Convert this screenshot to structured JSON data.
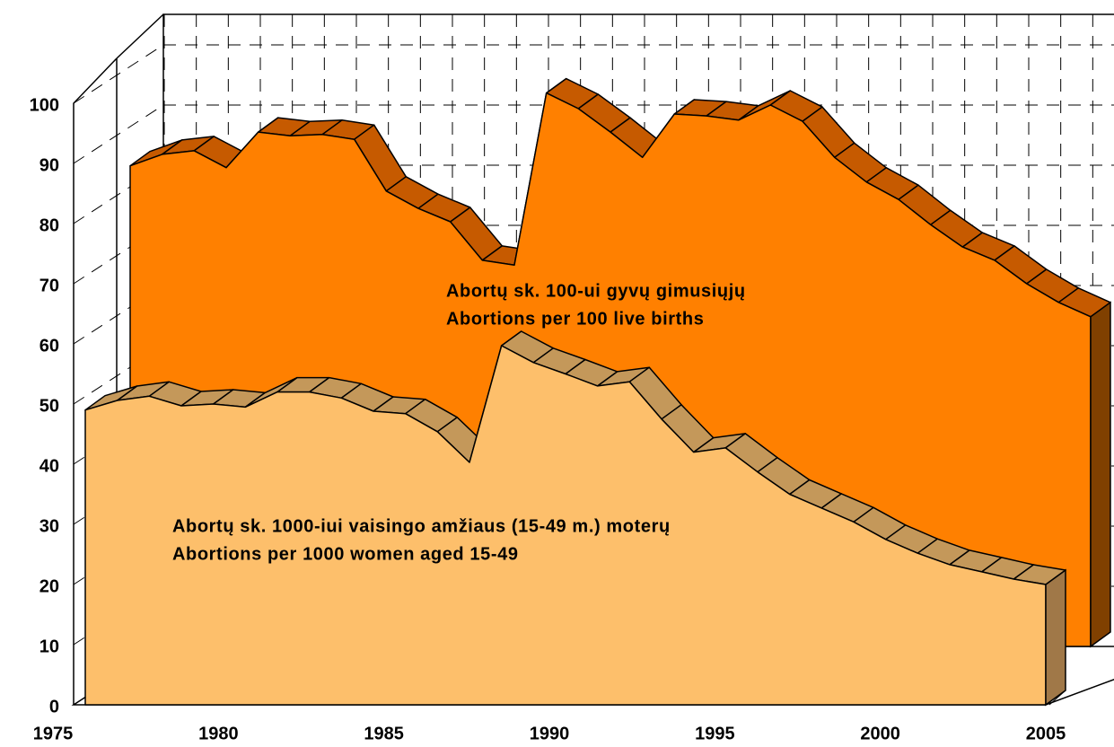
{
  "chart_data": {
    "type": "area3d",
    "x": [
      1975,
      1976,
      1977,
      1978,
      1979,
      1980,
      1981,
      1982,
      1983,
      1984,
      1985,
      1986,
      1987,
      1988,
      1989,
      1990,
      1991,
      1992,
      1993,
      1994,
      1995,
      1996,
      1997,
      1998,
      1999,
      2000,
      2001,
      2002,
      2003,
      2004,
      2005
    ],
    "series": [
      {
        "name": "Abortų sk. 100-ui gyvų gimusiųjų",
        "subtitle": "Abortions per 100 live births",
        "color": "#ff8000",
        "top_color": "#c65a00",
        "side_color": "#804000",
        "values": [
          79.9,
          81.8,
          82.4,
          79.6,
          85.5,
          84.9,
          85.1,
          84.3,
          75.7,
          72.8,
          70.6,
          64.2,
          63.4,
          92,
          89.4,
          85.5,
          81.3,
          88.5,
          88.2,
          87.5,
          90,
          87.3,
          81.3,
          77.2,
          74.3,
          70.1,
          66.4,
          64.2,
          60.3,
          57.2,
          54.8
        ]
      },
      {
        "name": "Abortų sk. 1000-iui vaisingo amžiaus (15-49 m.) moterų",
        "subtitle": "Abortions per 1000 women aged 15-49",
        "color": "#fdbf6b",
        "top_color": "#c4985a",
        "side_color": "#a07848",
        "values": [
          49,
          50.6,
          51.3,
          49.7,
          50,
          49.5,
          52,
          52,
          51,
          48.8,
          48.4,
          45.4,
          40.3,
          59.7,
          56.9,
          55,
          53,
          53.7,
          47.5,
          42,
          42.7,
          38.7,
          35,
          32.7,
          30.4,
          27.5,
          25.2,
          23.3,
          22.1,
          20.9,
          20
        ]
      }
    ],
    "xlim": [
      1975,
      2005
    ],
    "xticks": [
      1975,
      1980,
      1985,
      1990,
      1995,
      2000,
      2005
    ],
    "ylim": [
      0,
      100
    ],
    "yticks": [
      0,
      10,
      20,
      30,
      40,
      50,
      60,
      70,
      80,
      90,
      100
    ],
    "grid": true
  }
}
